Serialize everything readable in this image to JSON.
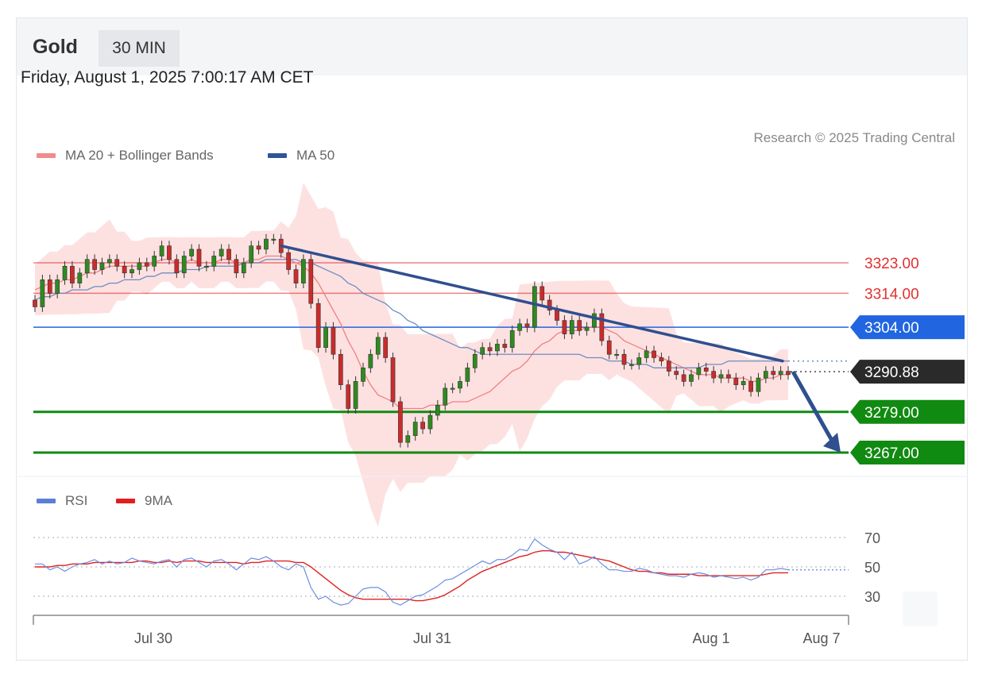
{
  "header": {
    "symbol": "Gold",
    "timeframe": "30 MIN"
  },
  "timestamp": "Friday, August 1, 2025 7:00:17 AM CET",
  "credit": "Research © 2025 Trading Central",
  "colors": {
    "bullish": "#2e8b1f",
    "bearish": "#cc2b2b",
    "bollinger": "#fcd9d9",
    "ma20": "#f08080",
    "ma50": "#6d8cc4",
    "trendline": "#2f4f8f",
    "resistance": "#e23030",
    "pivot": "#2166e0",
    "support": "#118a11",
    "rsi": "#6b8ee0",
    "rsi_ma": "#e02020"
  },
  "legend_main": [
    {
      "label": "MA 20 + Bollinger Bands",
      "color": "#f08c8c"
    },
    {
      "label": "MA 50",
      "color": "#2f5597"
    }
  ],
  "legend_rsi": [
    {
      "label": "RSI",
      "color": "#5b7fd6"
    },
    {
      "label": "9MA",
      "color": "#e01f1f"
    }
  ],
  "chart_data": {
    "type": "candlestick",
    "price_ylim": [
      3262,
      3338
    ],
    "levels": [
      {
        "label": "3323.00",
        "value": 3323,
        "kind": "resistance"
      },
      {
        "label": "3314.00",
        "value": 3314,
        "kind": "resistance"
      },
      {
        "label": "3304.00",
        "value": 3304,
        "kind": "pivot"
      },
      {
        "label": "3290.88",
        "value": 3290.88,
        "kind": "last"
      },
      {
        "label": "3279.00",
        "value": 3279,
        "kind": "support"
      },
      {
        "label": "3267.00",
        "value": 3267,
        "kind": "support"
      }
    ],
    "candle_closes": [
      3310,
      3318,
      3314,
      3318,
      3322,
      3317,
      3320,
      3324,
      3321,
      3323,
      3324,
      3322,
      3320,
      3321,
      3323,
      3322,
      3325,
      3328,
      3324,
      3320,
      3325,
      3327,
      3322,
      3322,
      3325,
      3327,
      3324,
      3320,
      3323,
      3328,
      3327,
      3330,
      3330,
      3326,
      3321,
      3317,
      3324,
      3311,
      3298,
      3304,
      3296,
      3287,
      3280,
      3288,
      3292,
      3296,
      3301,
      3295,
      3282,
      3270,
      3272,
      3276,
      3274,
      3278,
      3281,
      3286,
      3286,
      3288,
      3292,
      3296,
      3298,
      3297,
      3299,
      3298,
      3303,
      3305,
      3304,
      3316,
      3312,
      3309,
      3306,
      3302,
      3306,
      3303,
      3304,
      3308,
      3300,
      3296,
      3296,
      3293,
      3293,
      3295,
      3297,
      3295,
      3294,
      3291,
      3290,
      3288,
      3290,
      3292,
      3291,
      3289,
      3290,
      3289,
      3287,
      3288,
      3285,
      3289,
      3291,
      3290,
      3291,
      3290
    ],
    "ma20": [
      3315,
      3316,
      3317,
      3317,
      3318,
      3318,
      3319,
      3320,
      3320,
      3321,
      3322,
      3322,
      3322,
      3322,
      3322,
      3322,
      3323,
      3324,
      3324,
      3323,
      3323,
      3324,
      3323,
      3323,
      3323,
      3324,
      3324,
      3323,
      3323,
      3324,
      3324,
      3325,
      3325,
      3325,
      3324,
      3323,
      3322,
      3320,
      3317,
      3313,
      3309,
      3305,
      3300,
      3296,
      3291,
      3287,
      3284,
      3283,
      3282,
      3280,
      3280,
      3280,
      3280,
      3281,
      3281,
      3281,
      3282,
      3282,
      3282,
      3283,
      3284,
      3285,
      3287,
      3289,
      3291,
      3292,
      3294,
      3297,
      3299,
      3300,
      3302,
      3303,
      3303,
      3303,
      3304,
      3304,
      3304,
      3303,
      3302,
      3300,
      3299,
      3298,
      3297,
      3296,
      3295,
      3294,
      3293,
      3292,
      3291,
      3290,
      3290,
      3290,
      3289,
      3289,
      3289,
      3289,
      3288,
      3288,
      3289,
      3289,
      3290,
      3290
    ],
    "ma50": [
      3312,
      3313,
      3313,
      3314,
      3314,
      3315,
      3315,
      3315,
      3316,
      3316,
      3317,
      3317,
      3318,
      3318,
      3318,
      3319,
      3319,
      3320,
      3320,
      3320,
      3321,
      3321,
      3321,
      3322,
      3322,
      3322,
      3322,
      3322,
      3323,
      3323,
      3323,
      3324,
      3324,
      3324,
      3324,
      3324,
      3323,
      3323,
      3322,
      3321,
      3320,
      3319,
      3317,
      3316,
      3314,
      3313,
      3312,
      3311,
      3309,
      3308,
      3306,
      3305,
      3303,
      3302,
      3301,
      3300,
      3299,
      3298,
      3298,
      3297,
      3296,
      3296,
      3296,
      3296,
      3296,
      3296,
      3296,
      3296,
      3296,
      3296,
      3296,
      3296,
      3296,
      3296,
      3295,
      3295,
      3295,
      3294,
      3294,
      3294,
      3293,
      3293,
      3293,
      3292,
      3292,
      3292,
      3292,
      3292,
      3292,
      3292,
      3293,
      3293,
      3293,
      3294,
      3294,
      3294,
      3294,
      3294,
      3294,
      3294,
      3294,
      3294
    ],
    "trendline": {
      "from_value": 3328,
      "to_value": 3294
    },
    "forecast_arrow": {
      "from_value": 3290.88,
      "to_value": 3267
    },
    "rsi_ylim": [
      20,
      80
    ],
    "rsi_levels": [
      {
        "label": "70",
        "value": 70
      },
      {
        "label": "50",
        "value": 50
      },
      {
        "label": "30",
        "value": 30
      }
    ],
    "rsi": [
      52,
      52,
      48,
      50,
      47,
      50,
      52,
      53,
      55,
      52,
      54,
      52,
      53,
      56,
      54,
      53,
      52,
      54,
      55,
      50,
      55,
      56,
      53,
      50,
      54,
      55,
      52,
      48,
      52,
      56,
      55,
      57,
      54,
      50,
      48,
      52,
      50,
      36,
      28,
      30,
      26,
      24,
      25,
      30,
      35,
      36,
      36,
      33,
      26,
      24,
      27,
      30,
      31,
      34,
      37,
      41,
      42,
      45,
      48,
      51,
      54,
      52,
      55,
      55,
      58,
      62,
      61,
      69,
      65,
      62,
      60,
      55,
      60,
      52,
      54,
      57,
      52,
      48,
      48,
      47,
      47,
      49,
      48,
      46,
      45,
      44,
      44,
      43,
      45,
      46,
      45,
      43,
      44,
      43,
      42,
      43,
      41,
      43,
      48,
      48,
      49,
      48
    ],
    "rsi_ma": [
      50,
      50,
      50,
      51,
      51,
      52,
      52,
      52,
      53,
      53,
      53,
      53,
      53,
      53,
      54,
      54,
      53,
      53,
      54,
      53,
      54,
      54,
      54,
      53,
      53,
      53,
      53,
      53,
      52,
      53,
      53,
      54,
      54,
      54,
      54,
      53,
      53,
      50,
      46,
      42,
      38,
      34,
      31,
      29,
      28,
      28,
      28,
      28,
      28,
      28,
      28,
      27,
      27,
      28,
      29,
      31,
      34,
      37,
      41,
      44,
      47,
      49,
      51,
      53,
      55,
      57,
      58,
      60,
      61,
      61,
      60,
      60,
      59,
      58,
      57,
      56,
      55,
      54,
      52,
      50,
      48,
      47,
      47,
      46,
      46,
      45,
      45,
      45,
      45,
      44,
      44,
      44,
      44,
      44,
      44,
      44,
      44,
      44,
      45,
      46,
      46,
      46
    ],
    "x_ticks": [
      "Jul 30",
      "Jul 31",
      "Aug 1",
      "Aug 7"
    ]
  }
}
